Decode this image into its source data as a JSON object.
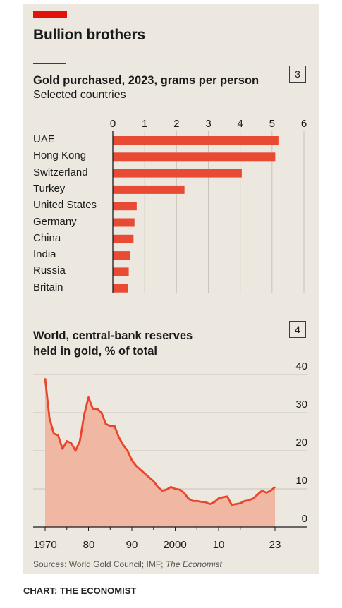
{
  "header": {
    "title": "Bullion brothers"
  },
  "chart1": {
    "number": "3",
    "title": "Gold purchased, 2023, grams per person",
    "subtitle": "Selected countries"
  },
  "chart2": {
    "number": "4",
    "title_line1": "World, central-bank reserves",
    "title_line2": "held in gold, % of total"
  },
  "source": {
    "prefix": "Sources: World Gold Council; IMF; ",
    "italic": "The Economist"
  },
  "footer": {
    "credit": "CHART: THE ECONOMIST"
  },
  "colors": {
    "accent": "#e3120b",
    "bar": "#e94a34",
    "area": "#f0b7a2",
    "line": "#e8452c",
    "panel": "#ece8df"
  },
  "chart_data": [
    {
      "type": "bar",
      "orientation": "horizontal",
      "title": "Gold purchased, 2023, grams per person",
      "subtitle": "Selected countries",
      "categories": [
        "UAE",
        "Hong Kong",
        "Switzerland",
        "Turkey",
        "United States",
        "Germany",
        "China",
        "India",
        "Russia",
        "Britain"
      ],
      "values": [
        5.2,
        5.1,
        4.05,
        2.25,
        0.75,
        0.68,
        0.65,
        0.55,
        0.5,
        0.47
      ],
      "xlim": [
        0,
        6
      ],
      "xticks": [
        "0",
        "1",
        "2",
        "3",
        "4",
        "5",
        "6"
      ],
      "grid": true
    },
    {
      "type": "area",
      "title": "World, central-bank reserves held in gold, % of total",
      "x": [
        1970,
        1971,
        1972,
        1973,
        1974,
        1975,
        1976,
        1977,
        1978,
        1979,
        1980,
        1981,
        1982,
        1983,
        1984,
        1985,
        1986,
        1987,
        1988,
        1989,
        1990,
        1991,
        1992,
        1993,
        1994,
        1995,
        1996,
        1997,
        1998,
        1999,
        2000,
        2001,
        2002,
        2003,
        2004,
        2005,
        2006,
        2007,
        2008,
        2009,
        2010,
        2011,
        2012,
        2013,
        2014,
        2015,
        2016,
        2017,
        2018,
        2019,
        2020,
        2021,
        2022,
        2023
      ],
      "values": [
        39,
        28.5,
        24.5,
        24,
        20.5,
        22.5,
        22,
        20,
        22.5,
        29.5,
        34,
        31,
        31,
        30,
        27,
        26.5,
        26.5,
        23.5,
        21.5,
        20,
        17.5,
        16,
        15,
        14,
        13,
        12,
        10.5,
        9.5,
        9.8,
        10.5,
        10,
        9.8,
        9,
        7.5,
        6.8,
        6.8,
        6.6,
        6.5,
        6,
        6.5,
        7.5,
        7.8,
        8,
        5.8,
        6,
        6.2,
        6.8,
        7,
        7.5,
        8.5,
        9.5,
        9,
        9.5,
        10.5
      ],
      "ylim": [
        0,
        40
      ],
      "yticks": [
        "0",
        "10",
        "20",
        "30",
        "40"
      ],
      "xticks": [
        "1970",
        "80",
        "90",
        "2000",
        "10",
        "23"
      ],
      "grid": true
    }
  ]
}
